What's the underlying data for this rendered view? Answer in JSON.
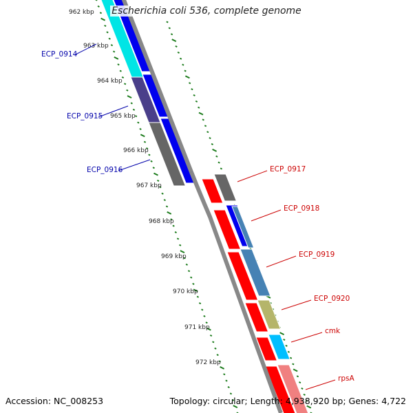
{
  "title": "Escherichia coli 536, complete genome",
  "footer": {
    "accession": "Accession: NC_008253",
    "summary": "Topology: circular; Length: 4,938,920 bp; Genes: 4,722"
  },
  "kbp_labels": [
    "962 kbp",
    "963 kbp",
    "964 kbp",
    "965 kbp",
    "966 kbp",
    "967 kbp",
    "968 kbp",
    "969 kbp",
    "970 kbp",
    "971 kbp",
    "972 kbp"
  ],
  "genes_left": [
    {
      "name": "ECP_0914",
      "color": "#0000aa"
    },
    {
      "name": "ECP_0915",
      "color": "#0000aa"
    },
    {
      "name": "ECP_0916",
      "color": "#0000aa"
    }
  ],
  "genes_right": [
    {
      "name": "ECP_0917",
      "color": "#cc0000"
    },
    {
      "name": "ECP_0918",
      "color": "#cc0000"
    },
    {
      "name": "ECP_0919",
      "color": "#cc0000"
    },
    {
      "name": "ECP_0920",
      "color": "#cc0000"
    },
    {
      "name": "cmk",
      "color": "#cc0000"
    },
    {
      "name": "rpsA",
      "color": "#cc0000"
    }
  ],
  "colors": {
    "tick": "#1a7a1a",
    "backbone": "#888888",
    "forward": "#ff0000",
    "reverse": "#0000ee",
    "cog_cyan": "#00e5e5",
    "cog_purple": "#4a3f8a",
    "cog_gray": "#666666",
    "cog_steel": "#4682b4",
    "cog_khaki": "#b5b56a",
    "cog_lightblue": "#00bfff",
    "cog_pink": "#f08080"
  }
}
